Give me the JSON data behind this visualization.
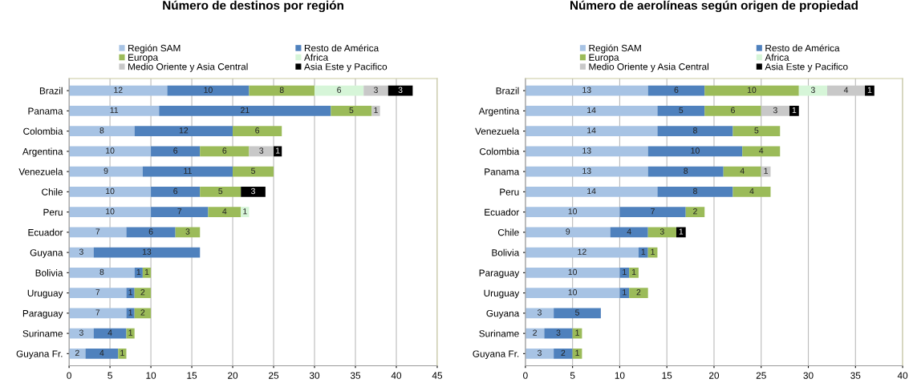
{
  "chart_data": [
    {
      "type": "bar",
      "orientation": "horizontal",
      "stacked": true,
      "title": "Número de destinos por región",
      "categories": [
        "Brazil",
        "Panama",
        "Colombia",
        "Argentina",
        "Venezuela",
        "Chile",
        "Peru",
        "Ecuador",
        "Guyana",
        "Bolivia",
        "Uruguay",
        "Paraguay",
        "Suriname",
        "Guyana Fr."
      ],
      "series": [
        {
          "name": "Región SAM",
          "color": "#a7c3e4",
          "values": [
            12,
            11,
            8,
            10,
            9,
            10,
            10,
            7,
            3,
            8,
            7,
            7,
            3,
            2
          ]
        },
        {
          "name": "Resto de América",
          "color": "#4f81bd",
          "values": [
            10,
            21,
            12,
            6,
            11,
            6,
            7,
            6,
            13,
            1,
            1,
            1,
            4,
            4
          ]
        },
        {
          "name": "Europa",
          "color": "#9bbb59",
          "values": [
            8,
            5,
            6,
            6,
            5,
            5,
            4,
            3,
            null,
            1,
            2,
            2,
            1,
            1
          ]
        },
        {
          "name": "Africa",
          "color": "#d6f5d8",
          "values": [
            6,
            null,
            null,
            null,
            null,
            null,
            1,
            null,
            null,
            null,
            null,
            null,
            null,
            null
          ]
        },
        {
          "name": "Medio Oriente y Asia Central",
          "color": "#c8c8c8",
          "values": [
            3,
            1,
            null,
            3,
            null,
            null,
            null,
            null,
            null,
            null,
            null,
            null,
            null,
            null
          ]
        },
        {
          "name": "Asia Este y Pacifico",
          "color": "#000000",
          "values": [
            3,
            null,
            null,
            1,
            null,
            3,
            null,
            null,
            null,
            null,
            null,
            null,
            null,
            null
          ]
        }
      ],
      "xlim": [
        0,
        45
      ],
      "xticks": [
        0,
        5,
        10,
        15,
        20,
        25,
        30,
        35,
        40,
        45
      ],
      "grid": "x",
      "legend": "top",
      "data_labels": true
    },
    {
      "type": "bar",
      "orientation": "horizontal",
      "stacked": true,
      "title": "Número de aerolíneas según origen de propiedad",
      "categories": [
        "Brazil",
        "Argentina",
        "Venezuela",
        "Colombia",
        "Panama",
        "Peru",
        "Ecuador",
        "Chile",
        "Bolivia",
        "Paraguay",
        "Uruguay",
        "Guyana",
        "Suriname",
        "Guyana Fr."
      ],
      "series": [
        {
          "name": "Región SAM",
          "color": "#a7c3e4",
          "values": [
            13,
            14,
            14,
            13,
            13,
            14,
            10,
            9,
            12,
            10,
            10,
            3,
            2,
            3
          ]
        },
        {
          "name": "Resto de América",
          "color": "#4f81bd",
          "values": [
            6,
            5,
            8,
            10,
            8,
            8,
            7,
            4,
            1,
            1,
            1,
            5,
            3,
            2
          ]
        },
        {
          "name": "Europa",
          "color": "#9bbb59",
          "values": [
            10,
            6,
            5,
            4,
            4,
            4,
            2,
            3,
            1,
            1,
            2,
            null,
            1,
            1
          ]
        },
        {
          "name": "Africa",
          "color": "#d6f5d8",
          "values": [
            3,
            null,
            null,
            null,
            null,
            null,
            null,
            null,
            null,
            null,
            null,
            null,
            null,
            null
          ]
        },
        {
          "name": "Medio Oriente y Asia Central",
          "color": "#c8c8c8",
          "values": [
            4,
            3,
            null,
            null,
            1,
            null,
            null,
            null,
            null,
            null,
            null,
            null,
            null,
            null
          ]
        },
        {
          "name": "Asia Este y Pacifico",
          "color": "#000000",
          "values": [
            1,
            1,
            null,
            null,
            null,
            null,
            null,
            1,
            null,
            null,
            null,
            null,
            null,
            null
          ]
        }
      ],
      "xlim": [
        0,
        40
      ],
      "xticks": [
        0,
        5,
        10,
        15,
        20,
        25,
        30,
        35,
        40
      ],
      "grid": "x",
      "legend": "top",
      "data_labels": true
    }
  ]
}
